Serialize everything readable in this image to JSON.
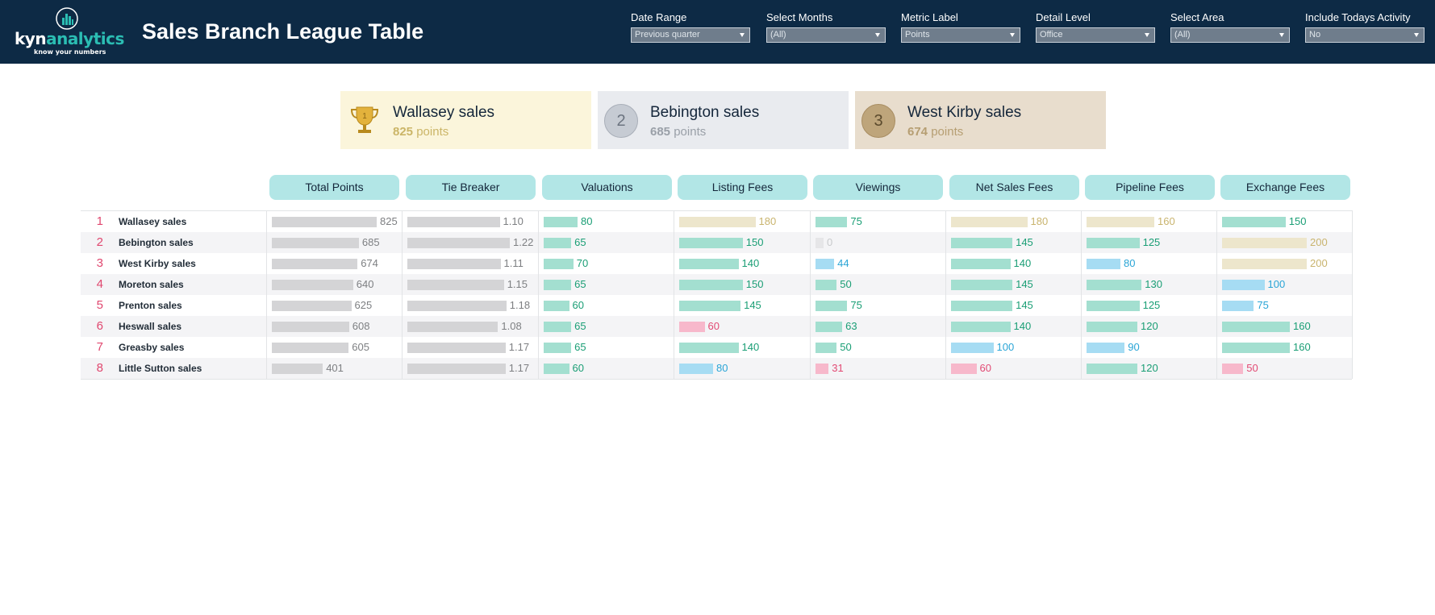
{
  "header": {
    "logo": {
      "part1": "kyn",
      "part2": "analytics",
      "tagline": "know your numbers"
    },
    "title": "Sales Branch League Table",
    "filters": [
      {
        "label": "Date Range",
        "value": "Previous quarter"
      },
      {
        "label": "Select Months",
        "value": "(All)"
      },
      {
        "label": "Metric Label",
        "value": "Points"
      },
      {
        "label": "Detail Level",
        "value": "Office"
      },
      {
        "label": "Select Area",
        "value": "(All)"
      },
      {
        "label": "Include Todays Activity",
        "value": "No"
      }
    ]
  },
  "podium": [
    {
      "rank": "1",
      "name": "Wallasey sales",
      "points": "825",
      "unit": "points",
      "icon": "trophy-icon"
    },
    {
      "rank": "2",
      "name": "Bebington sales",
      "points": "685",
      "unit": "points",
      "icon": "silver-medal-icon"
    },
    {
      "rank": "3",
      "name": "West Kirby sales",
      "points": "674",
      "unit": "points",
      "icon": "bronze-medal-icon"
    }
  ],
  "columns": [
    "Total Points",
    "Tie Breaker",
    "Valuations",
    "Listing Fees",
    "Viewings",
    "Net Sales Fees",
    "Pipeline Fees",
    "Exchange Fees"
  ],
  "colors": {
    "neutral_bar": "#d4d4d6",
    "neutral_text": "#7d7f82",
    "green_bar": "#a3dfd0",
    "green_text": "#1a9e75",
    "tan_bar": "#ede6cc",
    "tan_text": "#c9b46e",
    "blue_bar": "#a6dcf3",
    "blue_text": "#2aa5d6",
    "pink_bar": "#f7b8cb",
    "pink_text": "#e24a74",
    "zero_bar": "#e6e6e8",
    "zero_text": "#c8cacc"
  },
  "rows": [
    {
      "rank": "1",
      "branch": "Wallasey sales",
      "total": "825",
      "tie": "1.10",
      "metrics": [
        {
          "v": "80",
          "c": "green"
        },
        {
          "v": "180",
          "c": "tan"
        },
        {
          "v": "75",
          "c": "green"
        },
        {
          "v": "180",
          "c": "tan"
        },
        {
          "v": "160",
          "c": "tan"
        },
        {
          "v": "150",
          "c": "green"
        }
      ]
    },
    {
      "rank": "2",
      "branch": "Bebington sales",
      "total": "685",
      "tie": "1.22",
      "metrics": [
        {
          "v": "65",
          "c": "green"
        },
        {
          "v": "150",
          "c": "green"
        },
        {
          "v": "0",
          "c": "zero"
        },
        {
          "v": "145",
          "c": "green"
        },
        {
          "v": "125",
          "c": "green"
        },
        {
          "v": "200",
          "c": "tan"
        }
      ]
    },
    {
      "rank": "3",
      "branch": "West Kirby sales",
      "total": "674",
      "tie": "1.11",
      "metrics": [
        {
          "v": "70",
          "c": "green"
        },
        {
          "v": "140",
          "c": "green"
        },
        {
          "v": "44",
          "c": "blue"
        },
        {
          "v": "140",
          "c": "green"
        },
        {
          "v": "80",
          "c": "blue"
        },
        {
          "v": "200",
          "c": "tan"
        }
      ]
    },
    {
      "rank": "4",
      "branch": "Moreton sales",
      "total": "640",
      "tie": "1.15",
      "metrics": [
        {
          "v": "65",
          "c": "green"
        },
        {
          "v": "150",
          "c": "green"
        },
        {
          "v": "50",
          "c": "green"
        },
        {
          "v": "145",
          "c": "green"
        },
        {
          "v": "130",
          "c": "green"
        },
        {
          "v": "100",
          "c": "blue"
        }
      ]
    },
    {
      "rank": "5",
      "branch": "Prenton sales",
      "total": "625",
      "tie": "1.18",
      "metrics": [
        {
          "v": "60",
          "c": "green"
        },
        {
          "v": "145",
          "c": "green"
        },
        {
          "v": "75",
          "c": "green"
        },
        {
          "v": "145",
          "c": "green"
        },
        {
          "v": "125",
          "c": "green"
        },
        {
          "v": "75",
          "c": "blue"
        }
      ]
    },
    {
      "rank": "6",
      "branch": "Heswall sales",
      "total": "608",
      "tie": "1.08",
      "metrics": [
        {
          "v": "65",
          "c": "green"
        },
        {
          "v": "60",
          "c": "pink"
        },
        {
          "v": "63",
          "c": "green"
        },
        {
          "v": "140",
          "c": "green"
        },
        {
          "v": "120",
          "c": "green"
        },
        {
          "v": "160",
          "c": "green"
        }
      ]
    },
    {
      "rank": "7",
      "branch": "Greasby sales",
      "total": "605",
      "tie": "1.17",
      "metrics": [
        {
          "v": "65",
          "c": "green"
        },
        {
          "v": "140",
          "c": "green"
        },
        {
          "v": "50",
          "c": "green"
        },
        {
          "v": "100",
          "c": "blue"
        },
        {
          "v": "90",
          "c": "blue"
        },
        {
          "v": "160",
          "c": "green"
        }
      ]
    },
    {
      "rank": "8",
      "branch": "Little Sutton sales",
      "total": "401",
      "tie": "1.17",
      "metrics": [
        {
          "v": "60",
          "c": "green"
        },
        {
          "v": "80",
          "c": "blue"
        },
        {
          "v": "31",
          "c": "pink"
        },
        {
          "v": "60",
          "c": "pink"
        },
        {
          "v": "120",
          "c": "green"
        },
        {
          "v": "50",
          "c": "pink"
        }
      ]
    }
  ]
}
